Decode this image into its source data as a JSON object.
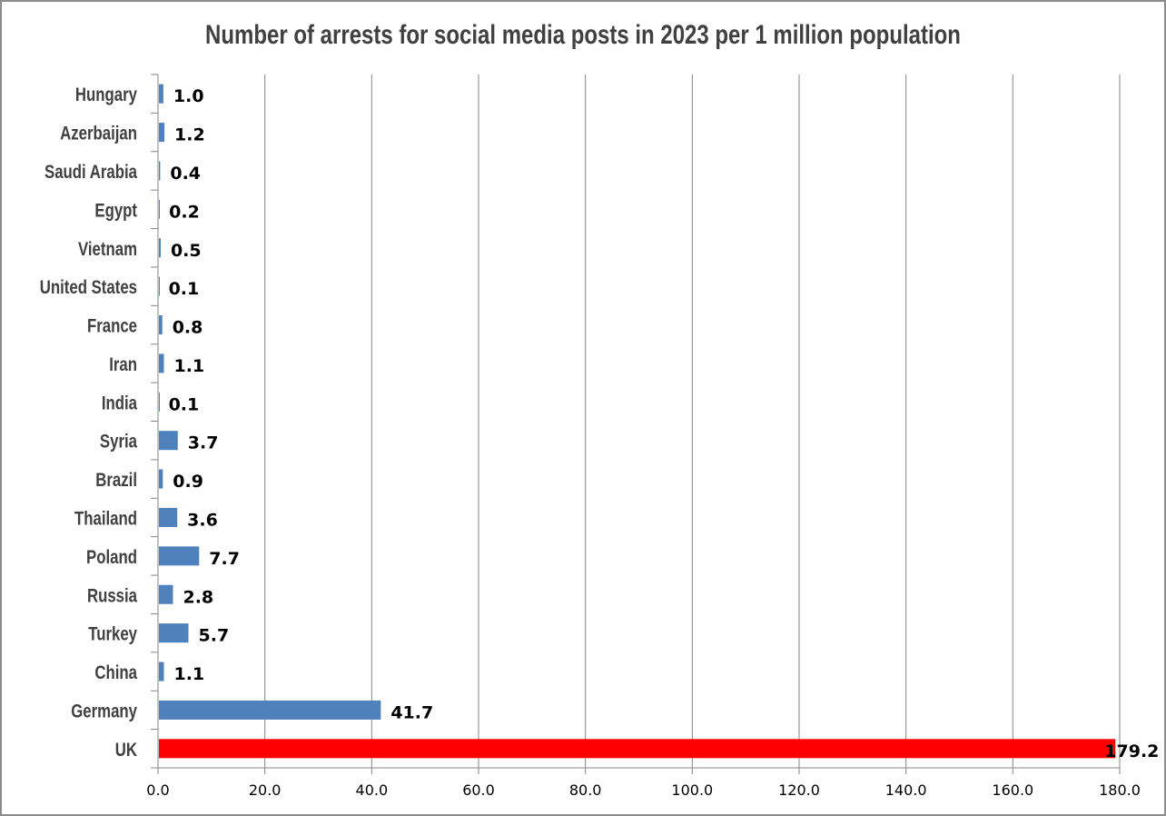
{
  "chart_data": {
    "type": "bar",
    "orientation": "horizontal",
    "title": "Number of arrests for social media posts in 2023 per 1 million population",
    "xlabel": "",
    "ylabel": "",
    "xlim": [
      0,
      180
    ],
    "xticks": [
      "0.0",
      "20.0",
      "40.0",
      "60.0",
      "80.0",
      "100.0",
      "120.0",
      "140.0",
      "160.0",
      "180.0"
    ],
    "grid": true,
    "categories": [
      "Hungary",
      "Azerbaijan",
      "Saudi Arabia",
      "Egypt",
      "Vietnam",
      "United States",
      "France",
      "Iran",
      "India",
      "Syria",
      "Brazil",
      "Thailand",
      "Poland",
      "Russia",
      "Turkey",
      "China",
      "Germany",
      "UK"
    ],
    "values": [
      1.0,
      1.2,
      0.4,
      0.2,
      0.5,
      0.1,
      0.8,
      1.1,
      0.1,
      3.7,
      0.9,
      3.6,
      7.7,
      2.8,
      5.7,
      1.1,
      41.7,
      179.2
    ],
    "labels": [
      "1.0",
      "1.2",
      "0.4",
      "0.2",
      "0.5",
      "0.1",
      "0.8",
      "1.1",
      "0.1",
      "3.7",
      "0.9",
      "3.6",
      "7.7",
      "2.8",
      "5.7",
      "1.1",
      "41.7",
      "179.2"
    ],
    "colors": {
      "default": "#4f81bd",
      "highlight": "#ff0000",
      "highlight_category": "UK"
    }
  }
}
